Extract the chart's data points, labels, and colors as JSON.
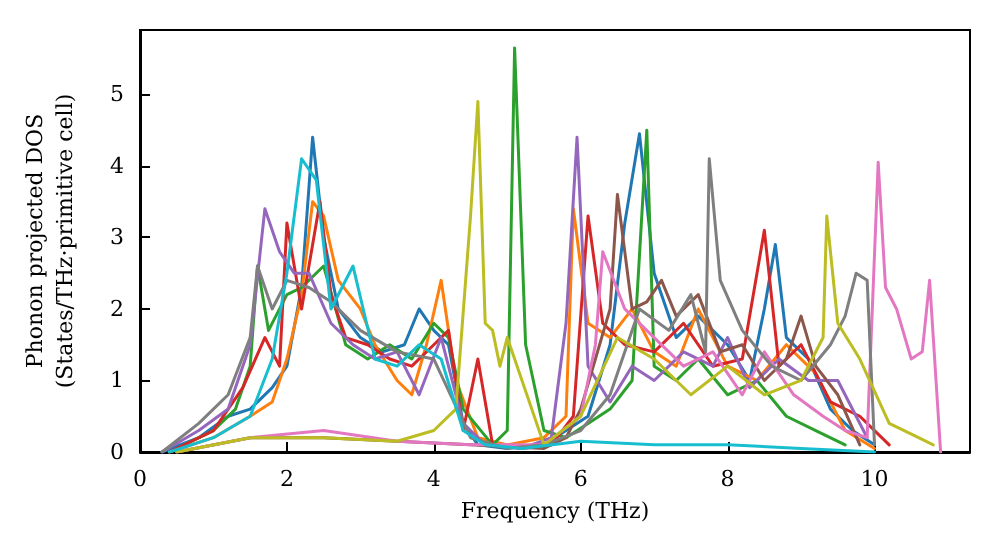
{
  "chart_data": {
    "type": "line",
    "xlabel": "Frequency (THz)",
    "ylabel": "Phonon projected DOS\n(States/THz·primitive cell)",
    "xlim": [
      0,
      11.3
    ],
    "ylim": [
      0,
      5.9
    ],
    "xticks": [
      0,
      2,
      4,
      6,
      8,
      10
    ],
    "yticks": [
      0,
      1,
      2,
      3,
      4,
      5
    ],
    "grid": false,
    "marker": "none",
    "line_style": "solid",
    "series": [
      {
        "color": "#1f77b4",
        "x": [
          0.3,
          0.8,
          1.2,
          1.5,
          1.8,
          2.0,
          2.2,
          2.35,
          2.5,
          2.7,
          3.0,
          3.3,
          3.6,
          3.8,
          4.0,
          4.2,
          4.4,
          4.6,
          5.0,
          5.5,
          5.8,
          6.1,
          6.4,
          6.6,
          6.8,
          7.0,
          7.3,
          7.6,
          8.0,
          8.3,
          8.5,
          8.65,
          8.8,
          9.1,
          9.4,
          9.7,
          10.0
        ],
        "values": [
          0,
          0.2,
          0.5,
          0.6,
          0.9,
          1.2,
          2.3,
          4.4,
          3.0,
          2.0,
          1.6,
          1.4,
          1.5,
          2.0,
          1.7,
          1.5,
          0.4,
          0.1,
          0.05,
          0.1,
          0.3,
          0.5,
          1.5,
          3.2,
          4.45,
          2.5,
          1.6,
          1.9,
          1.5,
          1.0,
          2.0,
          2.9,
          1.6,
          1.3,
          0.6,
          0.3,
          0.1
        ]
      },
      {
        "color": "#ff7f0e",
        "x": [
          0.4,
          1.0,
          1.5,
          1.8,
          2.0,
          2.2,
          2.35,
          2.5,
          2.7,
          3.0,
          3.2,
          3.5,
          3.7,
          3.9,
          4.1,
          4.3,
          4.6,
          5.0,
          5.5,
          5.8,
          5.9,
          6.1,
          6.4,
          6.7,
          7.0,
          7.3,
          7.6,
          8.0,
          8.4,
          8.8,
          9.2,
          9.6,
          10.0
        ],
        "values": [
          0,
          0.2,
          0.5,
          0.7,
          1.3,
          2.2,
          3.5,
          3.3,
          2.4,
          2.0,
          1.5,
          1.0,
          0.8,
          1.5,
          2.4,
          1.0,
          0.2,
          0.1,
          0.2,
          0.5,
          3.4,
          1.8,
          1.6,
          2.0,
          1.4,
          1.2,
          2.0,
          1.2,
          1.0,
          1.5,
          1.1,
          0.3,
          0.05
        ]
      },
      {
        "color": "#2ca02c",
        "x": [
          0.4,
          1.0,
          1.3,
          1.5,
          1.6,
          1.75,
          2.0,
          2.2,
          2.5,
          2.8,
          3.1,
          3.4,
          3.7,
          4.0,
          4.2,
          4.4,
          4.8,
          5.0,
          5.1,
          5.25,
          5.5,
          5.8,
          6.1,
          6.4,
          6.7,
          6.9,
          7.0,
          7.3,
          7.6,
          8.0,
          8.4,
          8.8,
          9.2,
          9.6
        ],
        "values": [
          0,
          0.3,
          0.6,
          1.2,
          2.6,
          1.7,
          2.2,
          2.3,
          2.6,
          1.5,
          1.3,
          1.5,
          1.3,
          1.8,
          1.6,
          0.6,
          0.1,
          0.3,
          5.65,
          1.5,
          0.3,
          0.2,
          0.4,
          0.6,
          1.0,
          4.5,
          1.2,
          1.0,
          1.3,
          0.8,
          1.0,
          0.5,
          0.3,
          0.1
        ]
      },
      {
        "color": "#d62728",
        "x": [
          0.4,
          1.0,
          1.4,
          1.7,
          1.9,
          2.0,
          2.2,
          2.45,
          2.6,
          2.8,
          3.1,
          3.4,
          3.7,
          4.0,
          4.2,
          4.4,
          4.6,
          4.8,
          5.2,
          5.6,
          5.9,
          6.1,
          6.3,
          6.6,
          7.0,
          7.4,
          7.8,
          8.2,
          8.5,
          8.7,
          9.0,
          9.4,
          9.8,
          10.2
        ],
        "values": [
          0,
          0.3,
          0.9,
          1.6,
          1.2,
          3.2,
          2.0,
          3.5,
          2.2,
          1.6,
          1.5,
          1.3,
          1.2,
          1.5,
          1.7,
          0.3,
          1.3,
          0.1,
          0.05,
          0.1,
          0.5,
          3.3,
          1.8,
          1.5,
          1.4,
          1.8,
          1.2,
          1.3,
          3.1,
          1.2,
          1.5,
          0.7,
          0.5,
          0.1
        ]
      },
      {
        "color": "#9467bd",
        "x": [
          0.3,
          0.8,
          1.2,
          1.5,
          1.7,
          1.9,
          2.1,
          2.3,
          2.6,
          2.9,
          3.2,
          3.5,
          3.8,
          4.1,
          4.4,
          4.7,
          5.2,
          5.6,
          5.8,
          5.95,
          6.1,
          6.4,
          6.7,
          7.0,
          7.4,
          7.8,
          8.0,
          8.3,
          8.7,
          9.1,
          9.5,
          9.9
        ],
        "values": [
          0,
          0.3,
          0.6,
          1.5,
          3.4,
          2.8,
          2.5,
          2.5,
          1.8,
          1.5,
          1.3,
          1.4,
          0.8,
          1.6,
          0.4,
          0.1,
          0.05,
          0.2,
          1.8,
          4.4,
          1.2,
          0.7,
          1.2,
          1.0,
          1.4,
          1.2,
          1.6,
          0.9,
          1.3,
          1.0,
          1.0,
          0.2
        ]
      },
      {
        "color": "#8c564b",
        "x": [
          0.5,
          1.5,
          2.5,
          3.5,
          4.5,
          5.5,
          5.8,
          6.0,
          6.2,
          6.4,
          6.5,
          6.7,
          6.9,
          7.1,
          7.3,
          7.6,
          7.9,
          8.2,
          8.5,
          8.8,
          9.0,
          9.2,
          9.5,
          9.8
        ],
        "values": [
          0,
          0.2,
          0.2,
          0.15,
          0.1,
          0.05,
          0.2,
          0.6,
          1.3,
          2.0,
          3.6,
          2.0,
          2.1,
          2.4,
          1.9,
          2.2,
          1.4,
          1.5,
          1.0,
          1.3,
          1.9,
          1.2,
          0.8,
          0.1
        ]
      },
      {
        "color": "#e377c2",
        "x": [
          0.5,
          1.5,
          2.5,
          3.5,
          4.5,
          5.5,
          6.0,
          6.2,
          6.3,
          6.6,
          7.0,
          7.4,
          7.8,
          8.2,
          8.5,
          8.9,
          9.3,
          9.6,
          9.9,
          10.05,
          10.15,
          10.3,
          10.5,
          10.65,
          10.75,
          10.9
        ],
        "values": [
          0,
          0.2,
          0.3,
          0.15,
          0.1,
          0.1,
          0.5,
          1.5,
          2.8,
          2.0,
          1.6,
          1.2,
          1.4,
          0.8,
          1.4,
          0.8,
          0.5,
          0.3,
          0.2,
          4.05,
          2.3,
          2.0,
          1.3,
          1.4,
          2.4,
          0
        ]
      },
      {
        "color": "#7f7f7f",
        "x": [
          0.3,
          0.8,
          1.2,
          1.5,
          1.6,
          1.8,
          2.0,
          2.3,
          2.6,
          3.0,
          3.5,
          4.0,
          4.5,
          5.0,
          5.5,
          6.0,
          6.4,
          6.8,
          7.2,
          7.5,
          7.7,
          7.75,
          7.9,
          8.2,
          8.6,
          9.0,
          9.4,
          9.6,
          9.75,
          9.9,
          10.0
        ],
        "values": [
          0,
          0.4,
          0.8,
          1.6,
          2.6,
          2.0,
          2.4,
          2.3,
          2.1,
          1.7,
          1.4,
          1.3,
          0.2,
          0.05,
          0.1,
          0.3,
          0.8,
          2.0,
          1.7,
          2.2,
          1.4,
          4.1,
          2.4,
          1.7,
          1.2,
          1.0,
          1.5,
          1.9,
          2.5,
          2.4,
          0.1
        ]
      },
      {
        "color": "#bcbd22",
        "x": [
          0.5,
          1.5,
          2.5,
          3.5,
          4.0,
          4.3,
          4.5,
          4.6,
          4.7,
          4.8,
          4.9,
          5.0,
          5.5,
          6.0,
          6.5,
          7.0,
          7.5,
          8.0,
          8.5,
          9.0,
          9.3,
          9.35,
          9.5,
          9.8,
          10.2,
          10.6,
          10.8
        ],
        "values": [
          0,
          0.2,
          0.2,
          0.15,
          0.3,
          0.6,
          3.3,
          4.9,
          1.8,
          1.7,
          1.2,
          1.6,
          0.1,
          0.5,
          1.6,
          1.3,
          0.8,
          1.2,
          0.8,
          1.0,
          1.6,
          3.3,
          1.8,
          1.3,
          0.4,
          0.2,
          0.1
        ]
      },
      {
        "color": "#17becf",
        "x": [
          0.4,
          1.0,
          1.5,
          1.8,
          2.0,
          2.2,
          2.4,
          2.6,
          2.9,
          3.2,
          3.5,
          3.8,
          4.1,
          4.4,
          4.7,
          5.2,
          6.0,
          7.0,
          8.0,
          9.0,
          10.0
        ],
        "values": [
          0,
          0.2,
          0.5,
          1.3,
          2.5,
          4.1,
          3.8,
          2.0,
          2.6,
          1.3,
          1.2,
          1.5,
          1.3,
          0.3,
          0.1,
          0.05,
          0.15,
          0.1,
          0.1,
          0.05,
          0
        ]
      }
    ]
  }
}
